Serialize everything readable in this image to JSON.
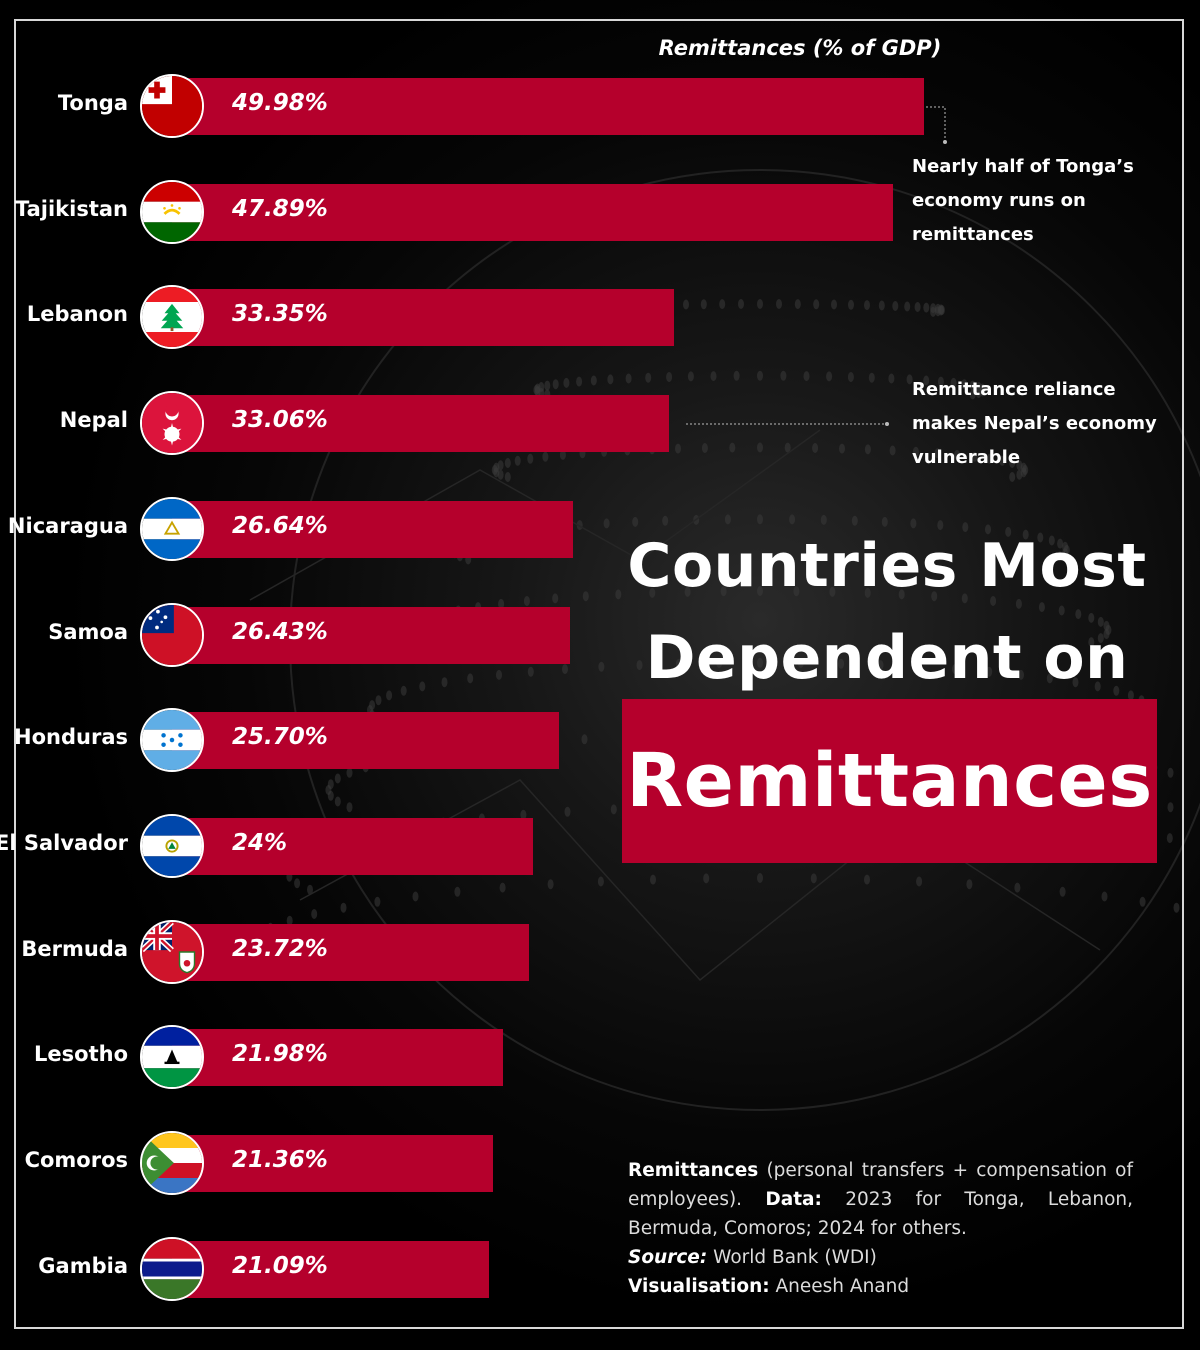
{
  "chart_data": {
    "type": "bar",
    "orientation": "horizontal",
    "axis_title": "Remittances (% of GDP)",
    "categories": [
      "Tonga",
      "Tajikistan",
      "Lebanon",
      "Nepal",
      "Nicaragua",
      "Samoa",
      "Honduras",
      "El Salvador",
      "Bermuda",
      "Lesotho",
      "Comoros",
      "Gambia"
    ],
    "values": [
      49.98,
      47.89,
      33.35,
      33.06,
      26.64,
      26.43,
      25.7,
      24,
      23.72,
      21.98,
      21.36,
      21.09
    ],
    "labels": [
      "49.98%",
      "47.89%",
      "33.35%",
      "33.06%",
      "26.64%",
      "26.43%",
      "25.70%",
      "24%",
      "23.72%",
      "21.98%",
      "21.36%",
      "21.09%"
    ],
    "bar_color": "#b5002c",
    "flags": [
      "tonga-flag-icon",
      "tajikistan-flag-icon",
      "lebanon-flag-icon",
      "nepal-flag-icon",
      "nicaragua-flag-icon",
      "samoa-flag-icon",
      "honduras-flag-icon",
      "el-salvador-flag-icon",
      "bermuda-flag-icon",
      "lesotho-flag-icon",
      "comoros-flag-icon",
      "gambia-flag-icon"
    ],
    "annotations": [
      {
        "category": "Tonga",
        "text": "Nearly half of Tonga’s economy runs on remittances"
      },
      {
        "category": "Nepal",
        "text": "Remittance reliance makes Nepal’s economy vulnerable"
      }
    ]
  },
  "title": {
    "line1": "Countries Most",
    "line2": "Dependent on",
    "line3": "Remittances"
  },
  "footnote": {
    "def_label": "Remittances",
    "def_text": " (personal transfers + compensation of employees). ",
    "data_label": "Data:",
    "data_text": " 2023 for Tonga, Lebanon, Bermuda, Comoros; 2024 for others.",
    "source_label": "Source:",
    "source_text": " World Bank (WDI)",
    "vis_label": "Visualisation:",
    "vis_text": " Aneesh Anand"
  },
  "colors": {
    "accent": "#b5002c",
    "background": "#000000",
    "text": "#ffffff"
  }
}
